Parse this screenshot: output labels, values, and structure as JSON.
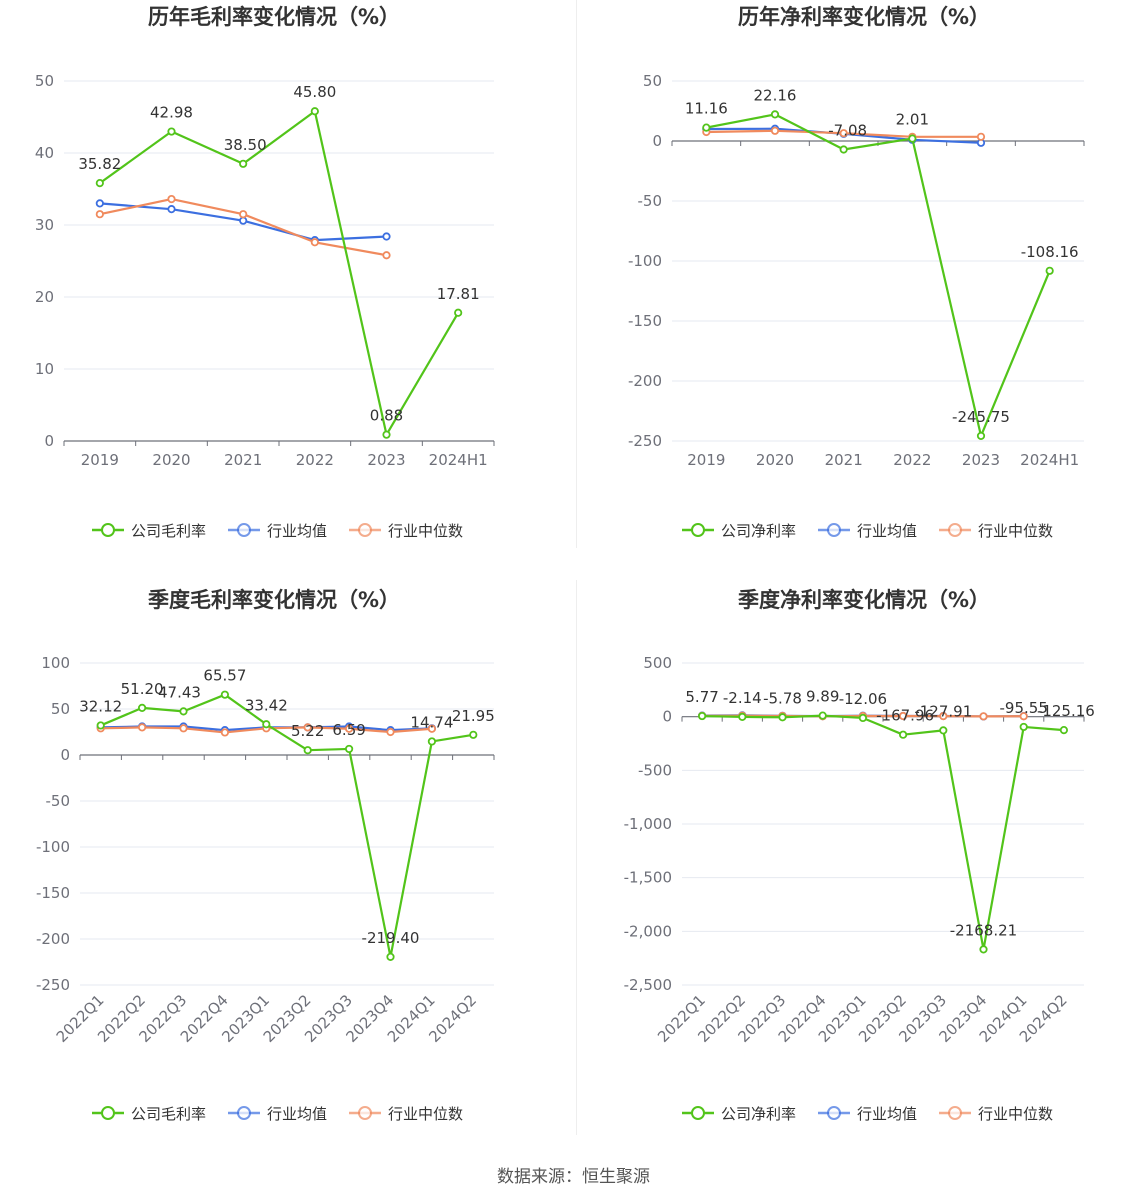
{
  "source": "数据来源：恒生聚源",
  "colors": {
    "company": "#52c41a",
    "industry_avg": "#3c6fe0",
    "industry_median": "#f08a5d"
  },
  "chart_data": [
    {
      "type": "line",
      "title": "历年毛利率变化情况（%）",
      "categories": [
        "2019",
        "2020",
        "2021",
        "2022",
        "2023",
        "2024H1"
      ],
      "ylim": [
        0,
        50
      ],
      "yticks": [
        0,
        10,
        20,
        30,
        40,
        50
      ],
      "ytick_labels": [
        "0",
        "10",
        "20",
        "30",
        "40",
        "50"
      ],
      "legend": [
        "公司毛利率",
        "行业均值",
        "行业中位数"
      ],
      "series": [
        {
          "name": "公司毛利率",
          "values": [
            35.82,
            42.98,
            38.5,
            45.8,
            0.88,
            17.81
          ],
          "labels": [
            "35.82",
            "42.98",
            "38.50",
            "45.80",
            "0.88",
            "17.81"
          ]
        },
        {
          "name": "行业均值",
          "values": [
            33.0,
            32.2,
            30.6,
            27.9,
            28.4,
            null
          ]
        },
        {
          "name": "行业中位数",
          "values": [
            31.5,
            33.6,
            31.5,
            27.6,
            25.8,
            null
          ]
        }
      ]
    },
    {
      "type": "line",
      "title": "历年净利率变化情况（%）",
      "categories": [
        "2019",
        "2020",
        "2021",
        "2022",
        "2023",
        "2024H1"
      ],
      "ylim": [
        -250,
        50
      ],
      "yticks": [
        -250,
        -200,
        -150,
        -100,
        -50,
        0,
        50
      ],
      "ytick_labels": [
        "-250",
        "-200",
        "-150",
        "-100",
        "-50",
        "0",
        "50"
      ],
      "legend": [
        "公司净利率",
        "行业均值",
        "行业中位数"
      ],
      "series": [
        {
          "name": "公司净利率",
          "values": [
            11.16,
            22.16,
            -7.08,
            2.01,
            -245.75,
            -108.16
          ],
          "labels": [
            "11.16",
            "22.16",
            "-7.08",
            "2.01",
            "-245.75",
            "-108.16"
          ]
        },
        {
          "name": "行业均值",
          "values": [
            10.0,
            10.2,
            6.0,
            1.0,
            -1.5,
            null
          ]
        },
        {
          "name": "行业中位数",
          "values": [
            7.5,
            8.5,
            6.5,
            3.5,
            3.5,
            null
          ]
        }
      ]
    },
    {
      "type": "line",
      "title": "季度毛利率变化情况（%）",
      "categories": [
        "2022Q1",
        "2022Q2",
        "2022Q3",
        "2022Q4",
        "2023Q1",
        "2023Q2",
        "2023Q3",
        "2023Q4",
        "2024Q1",
        "2024Q2"
      ],
      "ylim": [
        -250,
        100
      ],
      "yticks": [
        -250,
        -200,
        -150,
        -100,
        -50,
        0,
        50,
        100
      ],
      "ytick_labels": [
        "-250",
        "-200",
        "-150",
        "-100",
        "-50",
        "0",
        "50",
        "100"
      ],
      "legend": [
        "公司毛利率",
        "行业均值",
        "行业中位数"
      ],
      "series": [
        {
          "name": "公司毛利率",
          "values": [
            32.12,
            51.2,
            47.43,
            65.57,
            33.42,
            5.22,
            6.59,
            -219.4,
            14.74,
            21.95
          ],
          "labels": [
            "32.12",
            "51.20",
            "47.43",
            "65.57",
            "33.42",
            "5.22",
            "6.59",
            "-219.40",
            "14.74",
            "21.95"
          ]
        },
        {
          "name": "行业均值",
          "values": [
            30.0,
            31.0,
            31.0,
            27.0,
            30.0,
            30.0,
            31.0,
            27.0,
            29.0,
            null
          ]
        },
        {
          "name": "行业中位数",
          "values": [
            29.0,
            30.0,
            29.0,
            24.5,
            29.0,
            30.0,
            28.5,
            25.0,
            28.5,
            null
          ]
        }
      ]
    },
    {
      "type": "line",
      "title": "季度净利率变化情况（%）",
      "categories": [
        "2022Q1",
        "2022Q2",
        "2022Q3",
        "2022Q4",
        "2023Q1",
        "2023Q2",
        "2023Q3",
        "2023Q4",
        "2024Q1",
        "2024Q2"
      ],
      "ylim": [
        -2500,
        500
      ],
      "yticks": [
        -2500,
        -2000,
        -1500,
        -1000,
        -500,
        0,
        500
      ],
      "ytick_labels": [
        "-2,500",
        "-2,000",
        "-1,500",
        "-1,000",
        "-500",
        "0",
        "500"
      ],
      "legend": [
        "公司净利率",
        "行业均值",
        "行业中位数"
      ],
      "series": [
        {
          "name": "公司净利率",
          "values": [
            5.77,
            -2.14,
            -5.78,
            9.89,
            -12.06,
            -167.96,
            -127.91,
            -2168.21,
            -95.55,
            -125.16
          ],
          "labels": [
            "5.77",
            "-2.14",
            "-5.78",
            "9.89",
            "-12.06",
            "-167.96",
            "-127.91",
            "-2168.21",
            "-95.55",
            "-125.16"
          ]
        },
        {
          "name": "行业均值",
          "values": [
            10.0,
            12.0,
            8.0,
            5.0,
            9.0,
            7.0,
            6.0,
            2.0,
            5.0,
            null
          ]
        },
        {
          "name": "行业中位数",
          "values": [
            8.0,
            9.0,
            7.0,
            4.0,
            6.0,
            6.0,
            5.0,
            3.0,
            4.0,
            null
          ]
        }
      ]
    }
  ]
}
